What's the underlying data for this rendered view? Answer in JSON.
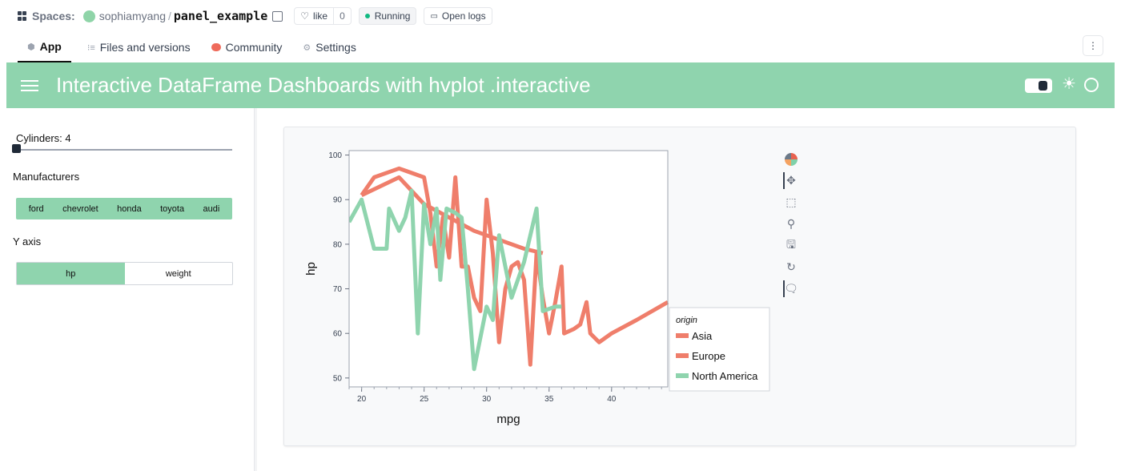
{
  "topbar": {
    "spaces_label": "Spaces:",
    "owner": "sophiamyang",
    "separator": "/",
    "repo": "panel_example",
    "like_label": "like",
    "like_count": "0",
    "status": "Running",
    "open_logs": "Open logs"
  },
  "tabs": [
    {
      "label": "App",
      "active": true
    },
    {
      "label": "Files and versions",
      "active": false
    },
    {
      "label": "Community",
      "active": false
    },
    {
      "label": "Settings",
      "active": false
    }
  ],
  "app": {
    "title": "Interactive DataFrame Dashboards with hvplot .interactive",
    "header_color": "#8fd4ae"
  },
  "sidebar": {
    "slider_label": "Cylinders: 4",
    "slider_value": 4,
    "manufacturers_label": "Manufacturers",
    "manufacturers": [
      "ford",
      "chevrolet",
      "honda",
      "toyota",
      "audi"
    ],
    "yaxis_label": "Y axis",
    "yaxis_options": [
      {
        "label": "hp",
        "active": true
      },
      {
        "label": "weight",
        "active": false
      }
    ]
  },
  "chart_data": {
    "type": "line",
    "title": "",
    "xlabel": "mpg",
    "ylabel": "hp",
    "xlim": [
      19,
      44.5
    ],
    "ylim": [
      48,
      101
    ],
    "x_ticks": [
      20,
      25,
      30,
      35,
      40
    ],
    "y_ticks": [
      50,
      60,
      70,
      80,
      90,
      100
    ],
    "legend_title": "origin",
    "legend_position": "outside-right",
    "series": [
      {
        "name": "Asia",
        "color": "#ef7e6b",
        "points": [
          [
            20,
            91
          ],
          [
            21,
            95
          ],
          [
            23,
            97
          ],
          [
            24.5,
            95.5
          ],
          [
            25,
            95
          ],
          [
            25.5,
            87
          ],
          [
            26,
            75
          ],
          [
            26.5,
            86
          ],
          [
            27,
            77
          ],
          [
            27.5,
            95
          ],
          [
            28,
            75
          ],
          [
            28.5,
            75
          ],
          [
            29,
            68
          ],
          [
            29.5,
            65
          ],
          [
            30,
            90
          ],
          [
            30.5,
            78
          ],
          [
            31,
            58
          ],
          [
            31.5,
            70
          ],
          [
            32,
            75
          ],
          [
            32.5,
            76
          ],
          [
            33,
            72
          ],
          [
            33.5,
            53
          ],
          [
            34,
            78
          ],
          [
            34.5,
            68
          ],
          [
            35,
            60
          ],
          [
            35.5,
            67
          ],
          [
            36,
            75
          ],
          [
            36.2,
            60
          ],
          [
            37,
            61
          ],
          [
            37.5,
            62
          ],
          [
            38,
            67
          ],
          [
            38.3,
            60
          ],
          [
            39,
            58
          ],
          [
            40,
            60
          ],
          [
            42,
            63
          ],
          [
            44.5,
            67
          ]
        ]
      },
      {
        "name": "Europe",
        "color": "#ef7e6b",
        "points": [
          [
            20,
            91
          ],
          [
            23,
            95
          ],
          [
            25,
            89
          ],
          [
            27,
            86
          ],
          [
            29,
            83
          ],
          [
            31,
            81
          ],
          [
            33,
            79
          ],
          [
            34.5,
            78
          ]
        ]
      },
      {
        "name": "North America",
        "color": "#8fd4ae",
        "points": [
          [
            19,
            85
          ],
          [
            20,
            90
          ],
          [
            21,
            79
          ],
          [
            22,
            79
          ],
          [
            22.2,
            88
          ],
          [
            23,
            83
          ],
          [
            23.5,
            86
          ],
          [
            24,
            92
          ],
          [
            24.5,
            60
          ],
          [
            25,
            89
          ],
          [
            25.5,
            80
          ],
          [
            26,
            88
          ],
          [
            26.3,
            72
          ],
          [
            26.8,
            88
          ],
          [
            27.5,
            87
          ],
          [
            28,
            86
          ],
          [
            28.5,
            70
          ],
          [
            29,
            52
          ],
          [
            30,
            66
          ],
          [
            30.5,
            63
          ],
          [
            31,
            82
          ],
          [
            31.5,
            75
          ],
          [
            32,
            68
          ],
          [
            33,
            76
          ],
          [
            34,
            88
          ],
          [
            34.5,
            65
          ],
          [
            35.5,
            66
          ],
          [
            36,
            66
          ]
        ]
      }
    ]
  },
  "bokeh_toolbar": [
    {
      "name": "bokeh-logo-icon",
      "glyph": ""
    },
    {
      "name": "pan-icon",
      "glyph": "✥"
    },
    {
      "name": "box-zoom-icon",
      "glyph": "⬚"
    },
    {
      "name": "wheel-zoom-icon",
      "glyph": "⚲"
    },
    {
      "name": "save-icon",
      "glyph": "🖫"
    },
    {
      "name": "reset-icon",
      "glyph": "↻"
    },
    {
      "name": "hover-icon",
      "glyph": "🗨"
    }
  ]
}
